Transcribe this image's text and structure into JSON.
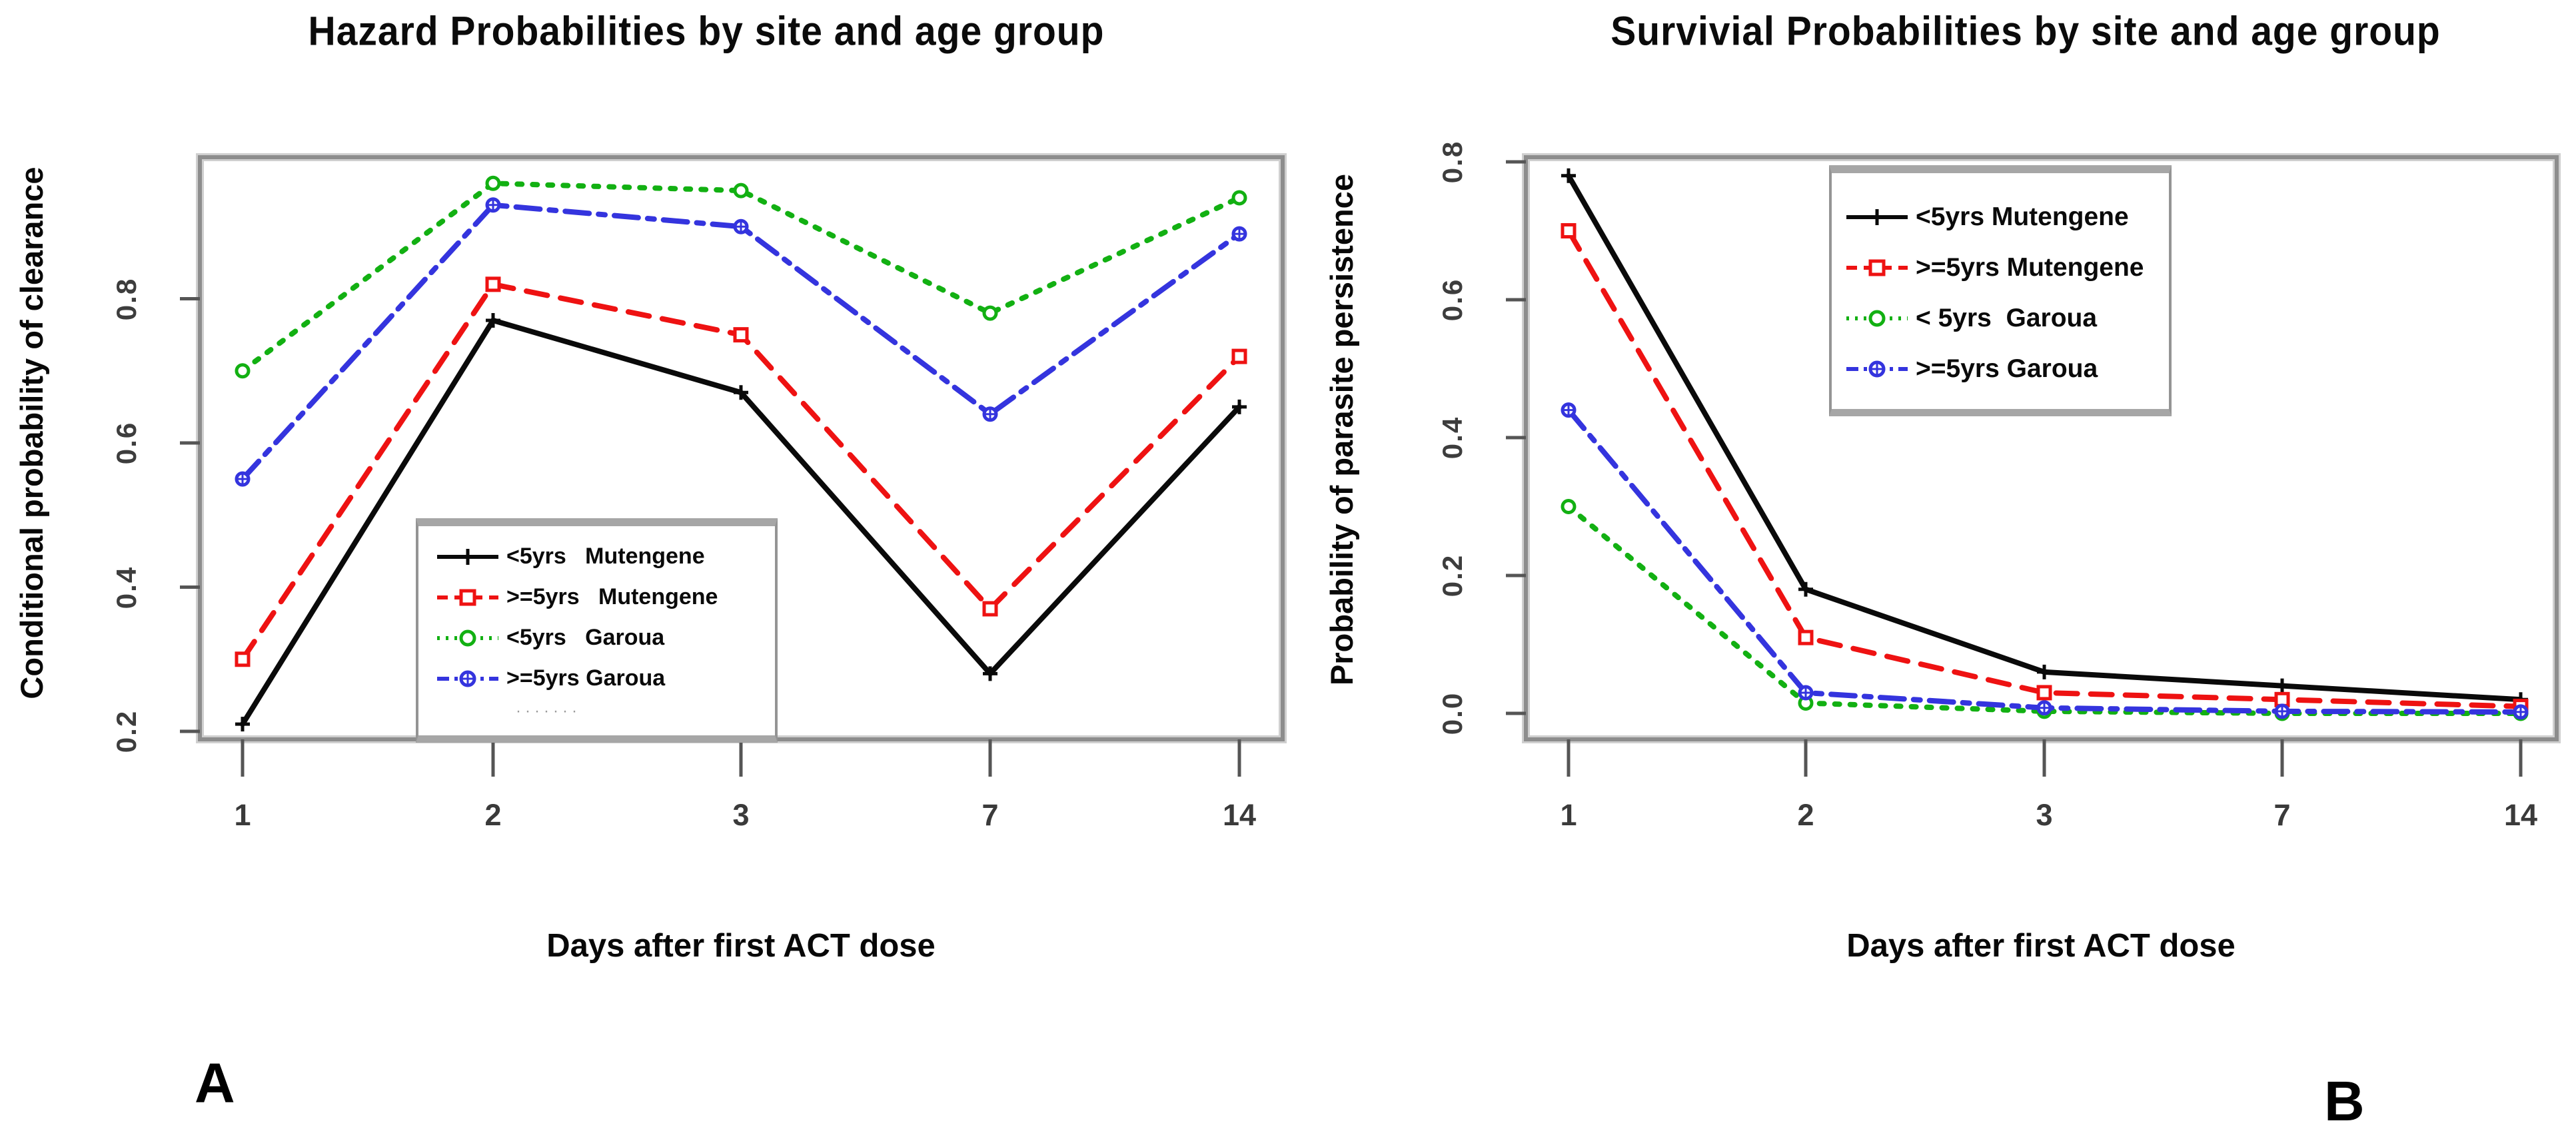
{
  "figure": {
    "background": "#ffffff",
    "frame_color": "#8d8d8d",
    "tick_color": "#555555",
    "tick_label_color": "#3a3a3a"
  },
  "panel_labels": [
    "A",
    "B"
  ],
  "chart_data": [
    {
      "type": "line",
      "panel": "A",
      "title": "Hazard Probabilities by site and age group",
      "xlabel": "Days after first ACT dose",
      "ylabel": "Conditional probability of clearance",
      "categories": [
        1,
        2,
        3,
        7,
        14
      ],
      "x_tick_labels": [
        "1",
        "2",
        "3",
        "7",
        "14"
      ],
      "y_tick_labels": [
        "0.8",
        "0.6",
        "0.4",
        "0.2"
      ],
      "ylim": [
        0.19,
        1.0
      ],
      "grid": false,
      "legend_position": "inside lower-left-of-center",
      "legend_note": "·······",
      "series": [
        {
          "name": "<5yrs Mutengene",
          "legend_label": "<5yrs   Mutengene",
          "color": "#0a0a0a",
          "line_style": "solid",
          "marker": "plus",
          "values": [
            0.21,
            0.77,
            0.67,
            0.28,
            0.65
          ]
        },
        {
          "name": ">=5yrs Mutengene",
          "legend_label": ">=5yrs   Mutengene",
          "color": "#ee1212",
          "line_style": "dashed",
          "marker": "square",
          "values": [
            0.3,
            0.82,
            0.75,
            0.37,
            0.72
          ]
        },
        {
          "name": "<5yrs Garoua",
          "legend_label": "<5yrs   Garoua",
          "color": "#12b012",
          "line_style": "dotted",
          "marker": "circle",
          "values": [
            0.7,
            0.96,
            0.95,
            0.78,
            0.94
          ]
        },
        {
          "name": ">=5yrs Garoua",
          "legend_label": ">=5yrs Garoua",
          "color": "#3434de",
          "line_style": "dash-dot",
          "marker": "flower",
          "values": [
            0.55,
            0.93,
            0.9,
            0.64,
            0.89
          ]
        }
      ]
    },
    {
      "type": "line",
      "panel": "B",
      "title": "Survivial Probabilities by site and age group",
      "xlabel": "Days after first ACT dose",
      "ylabel": "Probability of parasite persistence",
      "categories": [
        1,
        2,
        3,
        7,
        14
      ],
      "x_tick_labels": [
        "1",
        "2",
        "3",
        "7",
        "14"
      ],
      "y_tick_labels": [
        "0.8",
        "0.6",
        "0.4",
        "0.2",
        "0.0"
      ],
      "ylim": [
        -0.04,
        0.81
      ],
      "grid": false,
      "legend_position": "inside upper-center",
      "legend_note": "",
      "series": [
        {
          "name": "<5yrs Mutengene",
          "legend_label": "<5yrs Mutengene",
          "color": "#0a0a0a",
          "line_style": "solid",
          "marker": "plus",
          "values": [
            0.78,
            0.18,
            0.06,
            0.04,
            0.02
          ]
        },
        {
          "name": ">=5yrs Mutengene",
          "legend_label": ">=5yrs Mutengene",
          "color": "#ee1212",
          "line_style": "dashed",
          "marker": "square",
          "values": [
            0.7,
            0.11,
            0.03,
            0.02,
            0.01
          ]
        },
        {
          "name": "< 5yrs Garoua",
          "legend_label": "< 5yrs  Garoua",
          "color": "#12b012",
          "line_style": "dotted",
          "marker": "circle",
          "values": [
            0.3,
            0.015,
            0.003,
            0.0,
            0.0
          ]
        },
        {
          "name": ">=5yrs Garoua",
          "legend_label": ">=5yrs Garoua",
          "color": "#3434de",
          "line_style": "dash-dot",
          "marker": "flower",
          "values": [
            0.44,
            0.03,
            0.008,
            0.003,
            0.002
          ]
        }
      ]
    }
  ]
}
